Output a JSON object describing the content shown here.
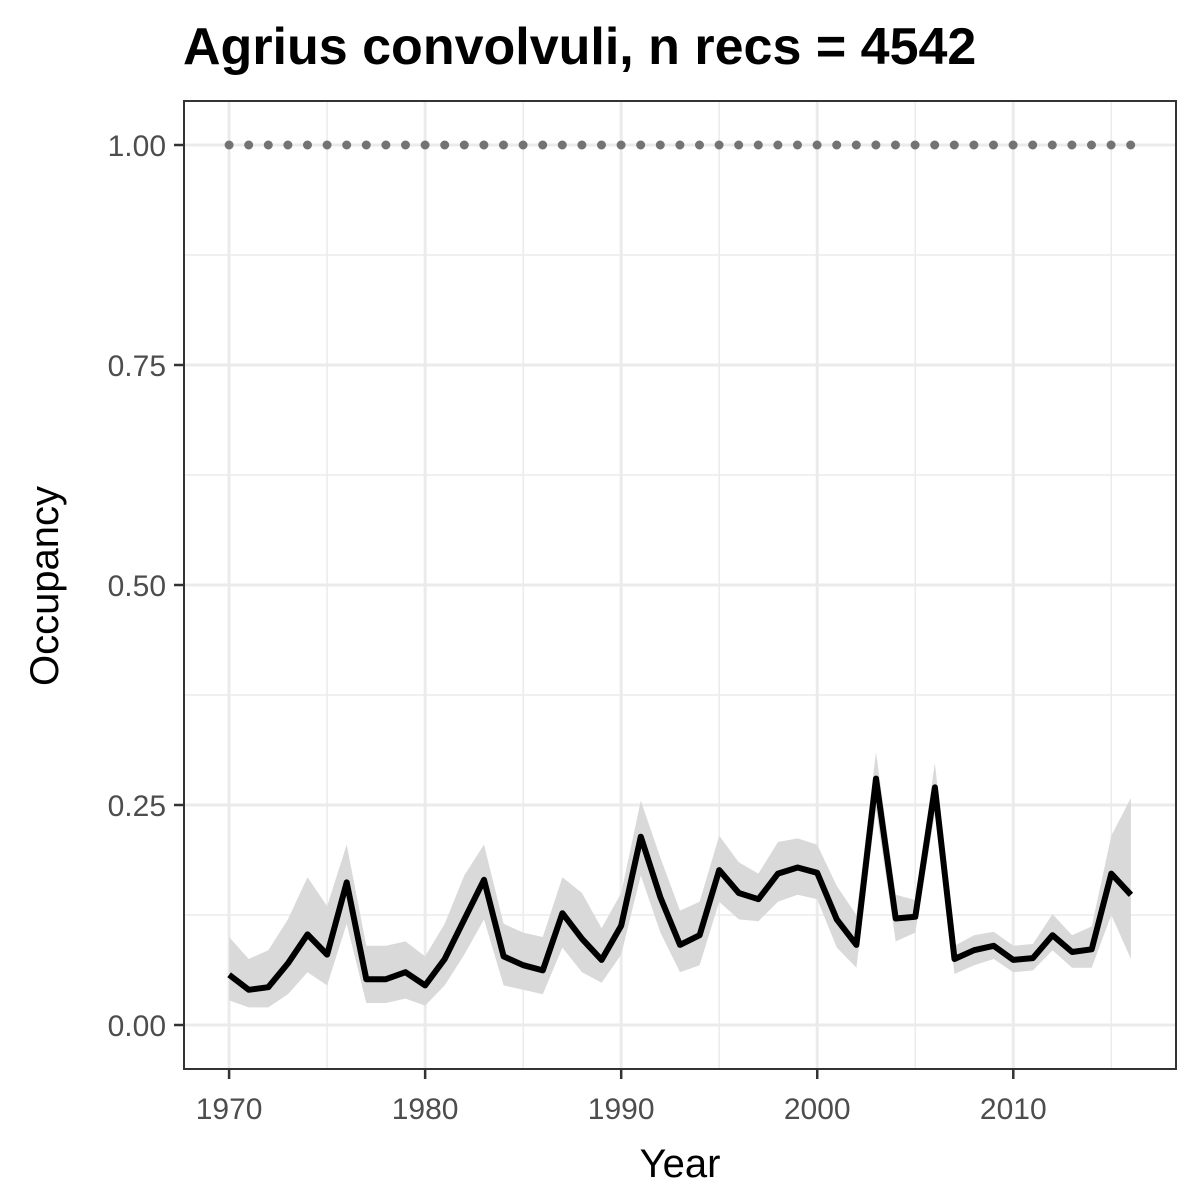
{
  "chart_data": {
    "type": "line",
    "title": "Agrius convolvuli, n recs = 4542",
    "xlabel": "Year",
    "ylabel": "Occupancy",
    "xlim": [
      1967.7,
      2018.3
    ],
    "ylim": [
      -0.05,
      1.05
    ],
    "x_ticks": [
      1970,
      1980,
      1990,
      2000,
      2010
    ],
    "x_tick_labels": [
      "1970",
      "1980",
      "1990",
      "2000",
      "2010"
    ],
    "y_ticks": [
      0,
      0.25,
      0.5,
      0.75,
      1.0
    ],
    "y_tick_labels": [
      "0.00",
      "0.25",
      "0.50",
      "0.75",
      "1.00"
    ],
    "grid": true,
    "colors": {
      "line": "#000000",
      "ribbon": "#d9d9d9",
      "reference": "#737373",
      "grid": "#ebebeb",
      "panel_border": "#333333"
    },
    "series": [
      {
        "kind": "line-with-ribbon",
        "x": [
          1970,
          1971,
          1972,
          1973,
          1974,
          1975,
          1976,
          1977,
          1978,
          1979,
          1980,
          1981,
          1982,
          1983,
          1984,
          1985,
          1986,
          1987,
          1988,
          1989,
          1990,
          1991,
          1992,
          1993,
          1994,
          1995,
          1996,
          1997,
          1998,
          1999,
          2000,
          2001,
          2002,
          2003,
          2004,
          2005,
          2006,
          2007,
          2008,
          2009,
          2010,
          2011,
          2012,
          2013,
          2014,
          2015,
          2016
        ],
        "values": [
          0.057,
          0.04,
          0.043,
          0.07,
          0.103,
          0.08,
          0.162,
          0.052,
          0.052,
          0.06,
          0.045,
          0.075,
          0.12,
          0.165,
          0.078,
          0.068,
          0.062,
          0.127,
          0.098,
          0.074,
          0.113,
          0.214,
          0.145,
          0.091,
          0.102,
          0.176,
          0.15,
          0.143,
          0.172,
          0.179,
          0.173,
          0.12,
          0.091,
          0.28,
          0.121,
          0.123,
          0.27,
          0.075,
          0.085,
          0.09,
          0.074,
          0.076,
          0.102,
          0.083,
          0.086,
          0.172,
          0.148
        ],
        "lower": [
          0.028,
          0.02,
          0.02,
          0.035,
          0.06,
          0.045,
          0.115,
          0.025,
          0.025,
          0.03,
          0.022,
          0.045,
          0.08,
          0.12,
          0.045,
          0.04,
          0.035,
          0.088,
          0.06,
          0.048,
          0.08,
          0.17,
          0.105,
          0.06,
          0.068,
          0.14,
          0.12,
          0.118,
          0.14,
          0.148,
          0.143,
          0.088,
          0.065,
          0.245,
          0.095,
          0.105,
          0.24,
          0.058,
          0.068,
          0.075,
          0.06,
          0.062,
          0.085,
          0.065,
          0.065,
          0.125,
          0.075
        ],
        "upper": [
          0.1,
          0.075,
          0.085,
          0.12,
          0.168,
          0.135,
          0.205,
          0.09,
          0.09,
          0.095,
          0.078,
          0.115,
          0.17,
          0.205,
          0.115,
          0.105,
          0.1,
          0.168,
          0.15,
          0.11,
          0.15,
          0.255,
          0.19,
          0.13,
          0.14,
          0.215,
          0.185,
          0.172,
          0.208,
          0.212,
          0.205,
          0.158,
          0.125,
          0.31,
          0.148,
          0.142,
          0.298,
          0.09,
          0.102,
          0.106,
          0.09,
          0.092,
          0.126,
          0.102,
          0.112,
          0.215,
          0.258
        ]
      },
      {
        "kind": "dotted-reference",
        "x": [
          1970,
          2016
        ],
        "values": [
          1.0,
          1.0
        ]
      }
    ]
  }
}
